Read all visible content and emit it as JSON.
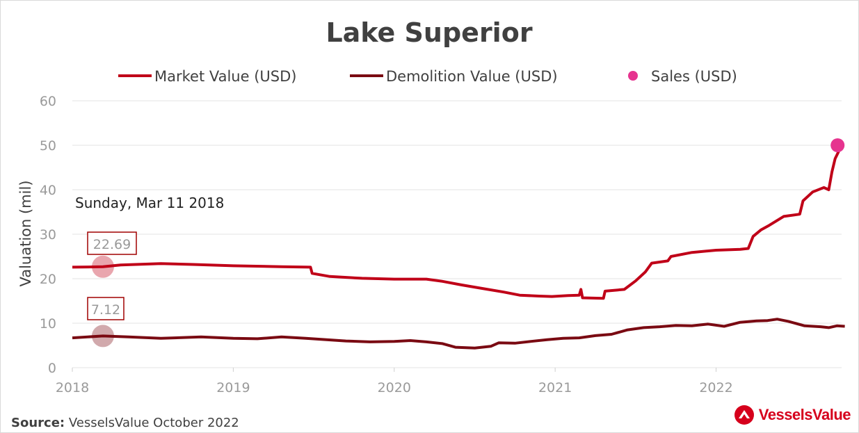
{
  "colors": {
    "market": "#c00018",
    "demolition": "#7a0a12",
    "sales": "#e6348f",
    "grid": "#e3e3e3",
    "tick": "#9a9a9a",
    "title": "#404040",
    "brand": "#d6001c"
  },
  "hover": {
    "date_label": "Sunday, Mar 11 2018",
    "market_label": "22.69",
    "demolition_label": "7.12"
  },
  "footer": {
    "source_label": "Source:",
    "source_text": " VesselsValue October 2022",
    "brand_text": "VesselsValue"
  },
  "chart_data": {
    "type": "line",
    "title": "Lake Superior",
    "ylabel": "Valuation (mil)",
    "xlabel": "",
    "xlim": [
      2018.0,
      2022.78
    ],
    "ylim": [
      0,
      60
    ],
    "yticks": [
      0,
      10,
      20,
      30,
      40,
      50,
      60
    ],
    "xticks": [
      2018,
      2019,
      2020,
      2021,
      2022
    ],
    "grid": true,
    "legend_position": "top",
    "series": [
      {
        "name": "Market Value (USD)",
        "type": "line",
        "points": [
          [
            2018.0,
            22.6
          ],
          [
            2018.19,
            22.69
          ],
          [
            2018.3,
            23.1
          ],
          [
            2018.55,
            23.4
          ],
          [
            2018.75,
            23.2
          ],
          [
            2019.0,
            22.9
          ],
          [
            2019.3,
            22.7
          ],
          [
            2019.48,
            22.6
          ],
          [
            2019.49,
            21.2
          ],
          [
            2019.6,
            20.5
          ],
          [
            2019.8,
            20.1
          ],
          [
            2020.0,
            19.9
          ],
          [
            2020.2,
            19.9
          ],
          [
            2020.3,
            19.4
          ],
          [
            2020.42,
            18.6
          ],
          [
            2020.55,
            17.8
          ],
          [
            2020.68,
            17.0
          ],
          [
            2020.78,
            16.3
          ],
          [
            2020.9,
            16.1
          ],
          [
            2020.98,
            16.0
          ],
          [
            2021.08,
            16.2
          ],
          [
            2021.15,
            16.3
          ],
          [
            2021.16,
            17.6
          ],
          [
            2021.17,
            15.7
          ],
          [
            2021.3,
            15.6
          ],
          [
            2021.31,
            17.2
          ],
          [
            2021.43,
            17.6
          ],
          [
            2021.5,
            19.5
          ],
          [
            2021.56,
            21.5
          ],
          [
            2021.6,
            23.5
          ],
          [
            2021.7,
            24.0
          ],
          [
            2021.72,
            25.0
          ],
          [
            2021.85,
            25.9
          ],
          [
            2022.0,
            26.4
          ],
          [
            2022.15,
            26.6
          ],
          [
            2022.2,
            26.8
          ],
          [
            2022.23,
            29.5
          ],
          [
            2022.28,
            31.0
          ],
          [
            2022.33,
            32.0
          ],
          [
            2022.42,
            34.0
          ],
          [
            2022.52,
            34.5
          ],
          [
            2022.54,
            37.5
          ],
          [
            2022.6,
            39.5
          ],
          [
            2022.67,
            40.5
          ],
          [
            2022.7,
            40.0
          ],
          [
            2022.72,
            44.0
          ],
          [
            2022.74,
            47.0
          ],
          [
            2022.76,
            48.5
          ],
          [
            2022.78,
            50.5
          ]
        ]
      },
      {
        "name": "Demolition Value (USD)",
        "type": "line",
        "points": [
          [
            2018.0,
            6.7
          ],
          [
            2018.19,
            7.12
          ],
          [
            2018.35,
            6.9
          ],
          [
            2018.55,
            6.6
          ],
          [
            2018.8,
            6.9
          ],
          [
            2019.0,
            6.6
          ],
          [
            2019.15,
            6.5
          ],
          [
            2019.3,
            6.9
          ],
          [
            2019.45,
            6.6
          ],
          [
            2019.7,
            6.0
          ],
          [
            2019.85,
            5.8
          ],
          [
            2020.0,
            5.9
          ],
          [
            2020.1,
            6.1
          ],
          [
            2020.2,
            5.8
          ],
          [
            2020.3,
            5.4
          ],
          [
            2020.38,
            4.6
          ],
          [
            2020.5,
            4.4
          ],
          [
            2020.6,
            4.8
          ],
          [
            2020.65,
            5.6
          ],
          [
            2020.75,
            5.5
          ],
          [
            2020.85,
            5.9
          ],
          [
            2020.95,
            6.3
          ],
          [
            2021.05,
            6.6
          ],
          [
            2021.15,
            6.7
          ],
          [
            2021.25,
            7.2
          ],
          [
            2021.35,
            7.5
          ],
          [
            2021.45,
            8.5
          ],
          [
            2021.55,
            9.0
          ],
          [
            2021.65,
            9.2
          ],
          [
            2021.75,
            9.5
          ],
          [
            2021.85,
            9.4
          ],
          [
            2021.95,
            9.8
          ],
          [
            2022.05,
            9.3
          ],
          [
            2022.15,
            10.2
          ],
          [
            2022.25,
            10.5
          ],
          [
            2022.32,
            10.6
          ],
          [
            2022.38,
            10.9
          ],
          [
            2022.45,
            10.4
          ],
          [
            2022.55,
            9.4
          ],
          [
            2022.65,
            9.2
          ],
          [
            2022.7,
            9.0
          ],
          [
            2022.75,
            9.4
          ],
          [
            2022.8,
            9.3
          ]
        ]
      },
      {
        "name": "Sales (USD)",
        "type": "scatter",
        "points": [
          [
            2022.755,
            50.0
          ]
        ]
      }
    ]
  }
}
